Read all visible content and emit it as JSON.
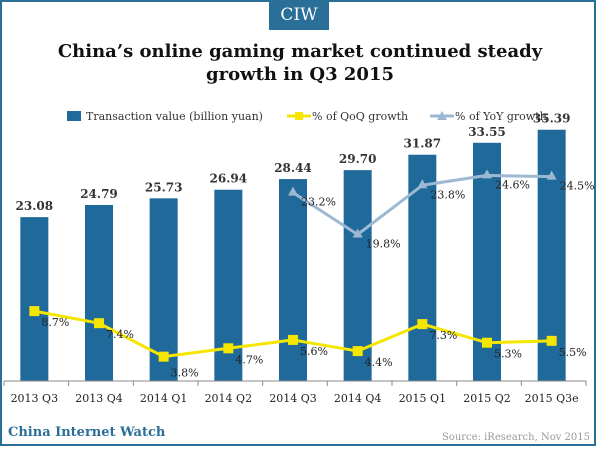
{
  "badge": "CIW",
  "title_line1": "China’s online gaming market continued steady",
  "title_line2": "growth in Q3 2015",
  "brand": "China Internet Watch",
  "source": "Source: iResearch, Nov 2015",
  "colors": {
    "bar": "#1f6a9a",
    "qoq": "#f5e600",
    "yoy": "#9db8d3",
    "frame": "#2a6f97"
  },
  "chart_data": {
    "type": "bar",
    "categories": [
      "2013 Q3",
      "2013 Q4",
      "2014 Q1",
      "2014 Q2",
      "2014 Q3",
      "2014 Q4",
      "2015 Q1",
      "2015 Q2",
      "2015 Q3e"
    ],
    "series": [
      {
        "name": "Transaction value (billion yuan)",
        "kind": "bar",
        "values": [
          23.08,
          24.79,
          25.73,
          26.94,
          28.44,
          29.7,
          31.87,
          33.55,
          35.39
        ],
        "labels": [
          "23.08",
          "24.79",
          "25.73",
          "26.94",
          "28.44",
          "29.70",
          "31.87",
          "33.55",
          "35.39"
        ]
      },
      {
        "name": "% of QoQ growth",
        "kind": "line",
        "values": [
          8.7,
          7.4,
          3.8,
          4.7,
          5.6,
          4.4,
          7.3,
          5.3,
          5.5
        ],
        "labels": [
          "8.7%",
          "7.4%",
          "3.8%",
          "4.7%",
          "5.6%",
          "4.4%",
          "7.3%",
          "5.3%",
          "5.5%"
        ]
      },
      {
        "name": "% of YoY growth",
        "kind": "line",
        "values": [
          null,
          null,
          null,
          null,
          23.2,
          19.8,
          23.8,
          24.6,
          24.5
        ],
        "labels": [
          null,
          null,
          null,
          null,
          "23.2%",
          "19.8%",
          "23.8%",
          "24.6%",
          "24.5%"
        ]
      }
    ],
    "ylim_bar": [
      0,
      40
    ],
    "grid": false,
    "legend": "top"
  }
}
